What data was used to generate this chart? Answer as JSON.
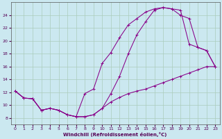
{
  "xlabel": "Windchill (Refroidissement éolien,°C)",
  "background_color": "#cbe8f0",
  "grid_color": "#aaccbb",
  "line_color": "#880088",
  "xlim": [
    -0.5,
    23.5
  ],
  "ylim": [
    7,
    26
  ],
  "xticks": [
    0,
    1,
    2,
    3,
    4,
    5,
    6,
    7,
    8,
    9,
    10,
    11,
    12,
    13,
    14,
    15,
    16,
    17,
    18,
    19,
    20,
    21,
    22,
    23
  ],
  "yticks": [
    8,
    10,
    12,
    14,
    16,
    18,
    20,
    22,
    24
  ],
  "line1_x": [
    0,
    1,
    2,
    3,
    4,
    5,
    6,
    7,
    8,
    9,
    10,
    11,
    12,
    13,
    14,
    15,
    16,
    17,
    18,
    19,
    20,
    21,
    22,
    23
  ],
  "line1_y": [
    12.2,
    11.1,
    11.0,
    9.2,
    9.5,
    9.2,
    8.5,
    8.2,
    8.2,
    8.5,
    9.5,
    10.5,
    11.2,
    11.8,
    12.2,
    12.5,
    13.0,
    13.5,
    14.0,
    14.5,
    15.0,
    15.5,
    16.0,
    16.0
  ],
  "line2_x": [
    0,
    1,
    2,
    3,
    4,
    5,
    6,
    7,
    8,
    9,
    10,
    11,
    12,
    13,
    14,
    15,
    16,
    17,
    18,
    19,
    20,
    21,
    22,
    23
  ],
  "line2_y": [
    12.2,
    11.1,
    11.0,
    9.2,
    9.5,
    9.2,
    8.5,
    8.2,
    8.2,
    8.5,
    9.5,
    11.8,
    14.5,
    18.0,
    21.0,
    23.0,
    24.8,
    25.2,
    25.0,
    24.0,
    23.5,
    19.0,
    18.5,
    16.0
  ],
  "line3_x": [
    0,
    1,
    2,
    3,
    4,
    5,
    6,
    7,
    8,
    9,
    10,
    11,
    12,
    13,
    14,
    15,
    16,
    17,
    18,
    19,
    20,
    21,
    22,
    23
  ],
  "line3_y": [
    12.2,
    11.1,
    11.0,
    9.2,
    9.5,
    9.2,
    8.5,
    8.2,
    11.8,
    12.5,
    16.5,
    18.2,
    20.5,
    22.5,
    23.5,
    24.5,
    25.0,
    25.2,
    25.0,
    24.8,
    19.5,
    19.0,
    18.5,
    16.0
  ]
}
